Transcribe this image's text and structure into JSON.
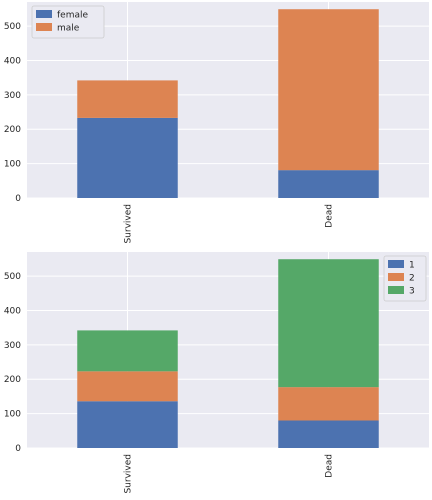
{
  "chart_data": [
    {
      "type": "bar",
      "stacked": true,
      "categories": [
        "Survived",
        "Dead"
      ],
      "series": [
        {
          "name": "female",
          "values": [
            233,
            81
          ]
        },
        {
          "name": "male",
          "values": [
            109,
            468
          ]
        }
      ],
      "ylim": [
        0,
        570
      ],
      "yticks": [
        0,
        100,
        200,
        300,
        400,
        500
      ],
      "grid": true,
      "legend_position": "top-left",
      "colors": [
        "#4c72b0",
        "#dd8452"
      ]
    },
    {
      "type": "bar",
      "stacked": true,
      "categories": [
        "Survived",
        "Dead"
      ],
      "series": [
        {
          "name": "1",
          "values": [
            136,
            80
          ]
        },
        {
          "name": "2",
          "values": [
            87,
            97
          ]
        },
        {
          "name": "3",
          "values": [
            119,
            372
          ]
        }
      ],
      "ylim": [
        0,
        570
      ],
      "yticks": [
        0,
        100,
        200,
        300,
        400,
        500
      ],
      "grid": true,
      "legend_position": "top-right",
      "colors": [
        "#4c72b0",
        "#dd8452",
        "#55a868"
      ]
    }
  ]
}
